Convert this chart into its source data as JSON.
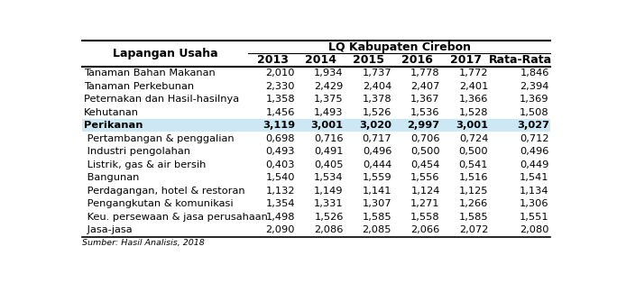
{
  "title_main": "LQ Kabupaten Cirebon",
  "col_header_left": "Lapangan Usaha",
  "col_headers": [
    "2013",
    "2014",
    "2015",
    "2016",
    "2017",
    "Rata-Rata"
  ],
  "rows": [
    {
      "label": "Tanaman Bahan Makanan",
      "values": [
        "2,010",
        "1,934",
        "1,737",
        "1,778",
        "1,772",
        "1,846"
      ],
      "bold": false,
      "highlight": false
    },
    {
      "label": "Tanaman Perkebunan",
      "values": [
        "2,330",
        "2,429",
        "2,404",
        "2,407",
        "2,401",
        "2,394"
      ],
      "bold": false,
      "highlight": false
    },
    {
      "label": "Peternakan dan Hasil-hasilnya",
      "values": [
        "1,358",
        "1,375",
        "1,378",
        "1,367",
        "1,366",
        "1,369"
      ],
      "bold": false,
      "highlight": false
    },
    {
      "label": "Kehutanan",
      "values": [
        "1,456",
        "1,493",
        "1,526",
        "1,536",
        "1,528",
        "1,508"
      ],
      "bold": false,
      "highlight": false
    },
    {
      "label": "Perikanan",
      "values": [
        "3,119",
        "3,001",
        "3,020",
        "2,997",
        "3,001",
        "3,027"
      ],
      "bold": true,
      "highlight": true
    },
    {
      "label": " Pertambangan & penggalian",
      "values": [
        "0,698",
        "0,716",
        "0,717",
        "0,706",
        "0,724",
        "0,712"
      ],
      "bold": false,
      "highlight": false
    },
    {
      "label": " Industri pengolahan",
      "values": [
        "0,493",
        "0,491",
        "0,496",
        "0,500",
        "0,500",
        "0,496"
      ],
      "bold": false,
      "highlight": false
    },
    {
      "label": " Listrik, gas & air bersih",
      "values": [
        "0,403",
        "0,405",
        "0,444",
        "0,454",
        "0,541",
        "0,449"
      ],
      "bold": false,
      "highlight": false
    },
    {
      "label": " Bangunan",
      "values": [
        "1,540",
        "1,534",
        "1,559",
        "1,556",
        "1,516",
        "1,541"
      ],
      "bold": false,
      "highlight": false
    },
    {
      "label": " Perdagangan, hotel & restoran",
      "values": [
        "1,132",
        "1,149",
        "1,141",
        "1,124",
        "1,125",
        "1,134"
      ],
      "bold": false,
      "highlight": false
    },
    {
      "label": " Pengangkutan & komunikasi",
      "values": [
        "1,354",
        "1,331",
        "1,307",
        "1,271",
        "1,266",
        "1,306"
      ],
      "bold": false,
      "highlight": false
    },
    {
      "label": " Keu. persewaan & jasa perusahaan",
      "values": [
        "1,498",
        "1,526",
        "1,585",
        "1,558",
        "1,585",
        "1,551"
      ],
      "bold": false,
      "highlight": false
    },
    {
      "label": " Jasa-jasa",
      "values": [
        "2,090",
        "2,086",
        "2,085",
        "2,066",
        "2,072",
        "2,080"
      ],
      "bold": false,
      "highlight": false
    }
  ],
  "footer": "Sumber: Hasil Analisis, 2018",
  "highlight_color": "#cce8f4",
  "background_color": "#ffffff",
  "font_size": 8.2,
  "header_font_size": 9.0
}
